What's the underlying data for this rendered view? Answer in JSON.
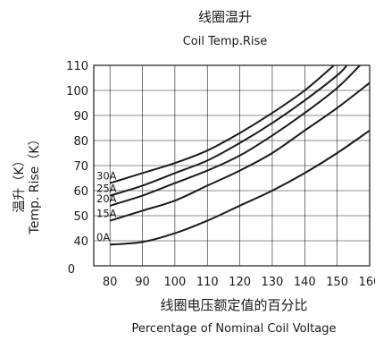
{
  "chart_data": {
    "type": "line",
    "title": "线圈温升",
    "subtitle": "Coil Temp.Rise",
    "xlabel": "线圈电压额定值的百分比",
    "xlabel_en": "Percentage of Nominal Coil Voltage",
    "ylabel": "温升（K）",
    "ylabel_en": "Temp. Rise（K）",
    "xlim": [
      75,
      160
    ],
    "ylim": [
      0,
      110
    ],
    "x_ticks": [
      80,
      90,
      100,
      110,
      120,
      130,
      140,
      150,
      160
    ],
    "y_ticks": [
      0,
      40,
      50,
      60,
      70,
      80,
      90,
      100,
      110
    ],
    "grid": true,
    "series": [
      {
        "name": "0A",
        "x": [
          80,
          90,
          100,
          110,
          120,
          130,
          140,
          150,
          160
        ],
        "y": [
          34,
          38,
          43,
          48,
          54,
          60,
          67,
          75,
          84
        ]
      },
      {
        "name": "15A",
        "x": [
          80,
          90,
          100,
          110,
          120,
          130,
          140,
          150,
          160
        ],
        "y": [
          48,
          52,
          56,
          62,
          68,
          75,
          84,
          93,
          103
        ]
      },
      {
        "name": "20A",
        "x": [
          80,
          90,
          100,
          110,
          120,
          130,
          140,
          150,
          157
        ],
        "y": [
          54,
          58,
          63,
          68,
          74,
          82,
          91,
          101,
          110
        ]
      },
      {
        "name": "25A",
        "x": [
          80,
          90,
          100,
          110,
          120,
          130,
          140,
          150,
          153
        ],
        "y": [
          58,
          62,
          67,
          72,
          79,
          87,
          96,
          106,
          110
        ]
      },
      {
        "name": "30A",
        "x": [
          80,
          90,
          100,
          110,
          120,
          130,
          140,
          149
        ],
        "y": [
          63,
          67,
          71,
          76,
          83,
          91,
          100,
          110
        ]
      }
    ]
  }
}
